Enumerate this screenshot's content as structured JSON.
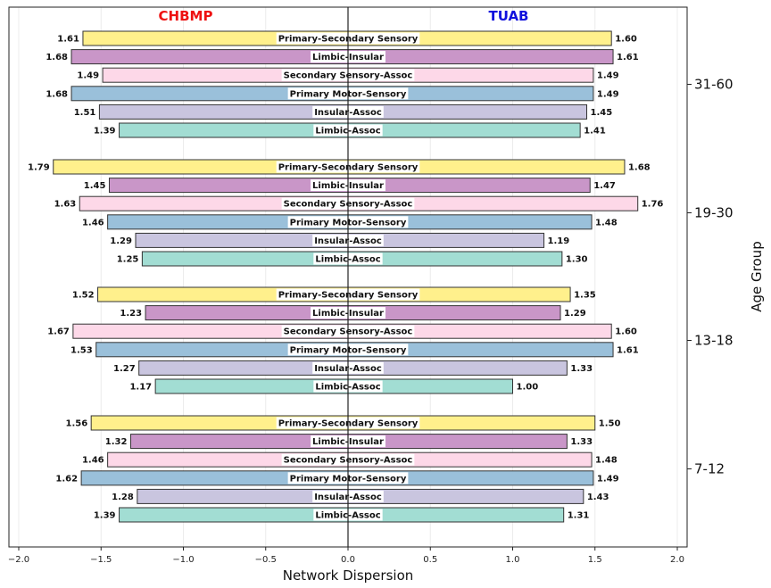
{
  "chart_data": {
    "type": "bar",
    "orientation": "horizontal-diverging",
    "left_title": "CHBMP",
    "right_title": "TUAB",
    "left_title_color": "#ee1111",
    "right_title_color": "#1111dd",
    "xlabel": "Network Dispersion",
    "ylabel": "Age Group",
    "xlim": [
      -2.05,
      2.05
    ],
    "xticks": [
      -2.0,
      -1.5,
      -1.0,
      -0.5,
      0.0,
      0.5,
      1.0,
      1.5,
      2.0
    ],
    "xtick_labels": [
      "−2.0",
      "−1.5",
      "−1.0",
      "−0.5",
      "0.0",
      "0.5",
      "1.0",
      "1.5",
      "2.0"
    ],
    "grid": true,
    "age_groups": [
      "31-60",
      "19-30",
      "13-18",
      "7-12"
    ],
    "categories": [
      "Primary-Secondary Sensory",
      "Limbic-Insular",
      "Secondary Sensory-Assoc",
      "Primary Motor-Sensory",
      "Insular-Assoc",
      "Limbic-Assoc"
    ],
    "colors": [
      "#fff08c",
      "#c996c8",
      "#fdd8e8",
      "#9ac0da",
      "#c9c5df",
      "#a2ddd3"
    ],
    "groups": [
      {
        "age": "31-60",
        "chbmp": [
          1.61,
          1.68,
          1.49,
          1.68,
          1.51,
          1.39
        ],
        "tuab": [
          1.6,
          1.61,
          1.49,
          1.49,
          1.45,
          1.41
        ]
      },
      {
        "age": "19-30",
        "chbmp": [
          1.79,
          1.45,
          1.63,
          1.46,
          1.29,
          1.25
        ],
        "tuab": [
          1.68,
          1.47,
          1.76,
          1.48,
          1.19,
          1.3
        ]
      },
      {
        "age": "13-18",
        "chbmp": [
          1.52,
          1.23,
          1.67,
          1.53,
          1.27,
          1.17
        ],
        "tuab": [
          1.35,
          1.29,
          1.6,
          1.61,
          1.33,
          1.0
        ]
      },
      {
        "age": "7-12",
        "chbmp": [
          1.56,
          1.32,
          1.46,
          1.62,
          1.28,
          1.39
        ],
        "tuab": [
          1.5,
          1.33,
          1.48,
          1.49,
          1.43,
          1.31
        ]
      }
    ]
  }
}
